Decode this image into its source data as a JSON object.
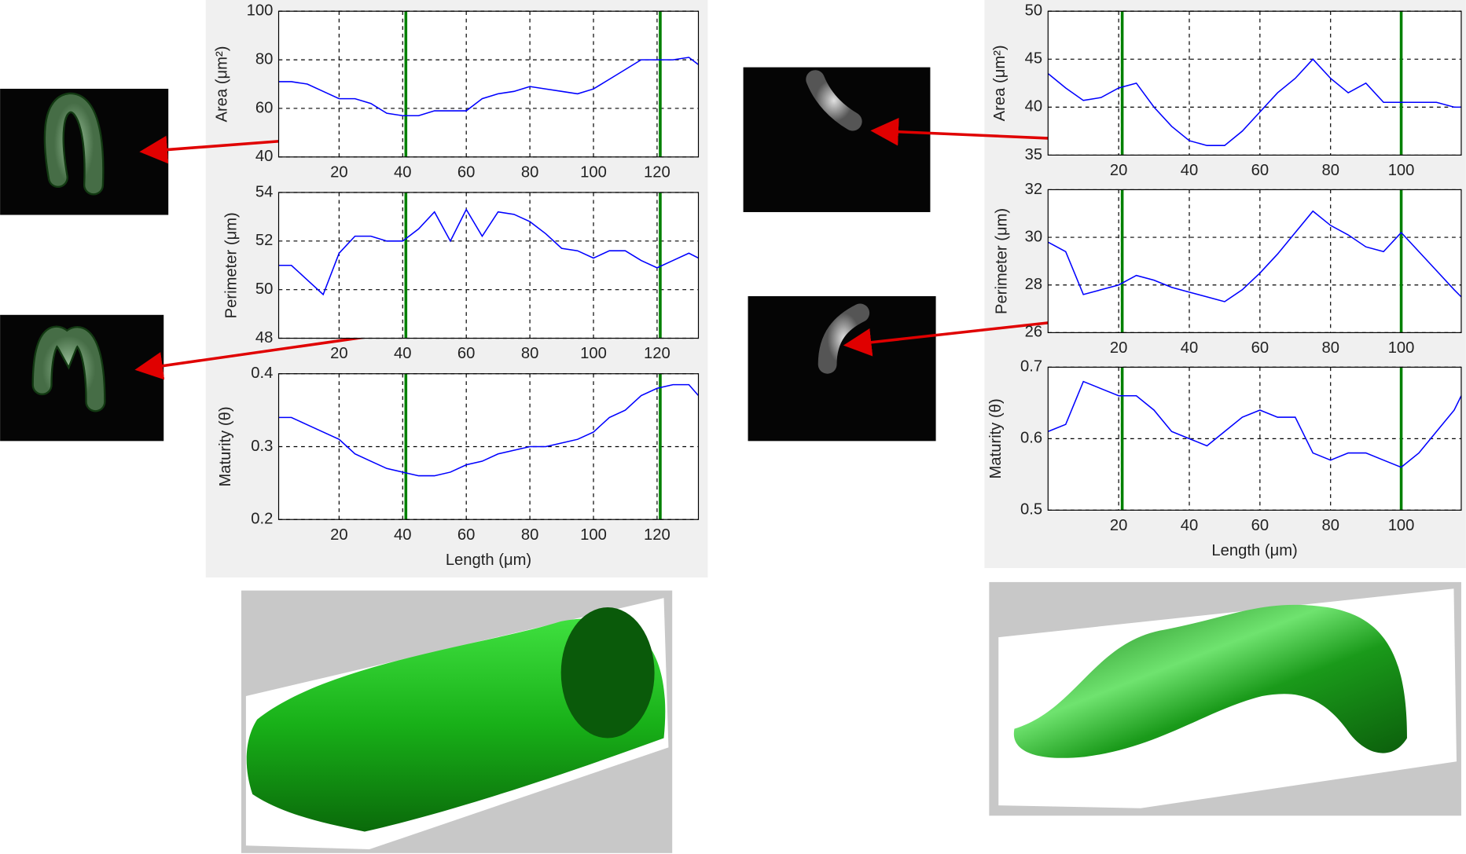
{
  "chart_data": [
    {
      "type": "line",
      "ylabel": "Area (μm²)",
      "x": [
        1,
        5,
        10,
        15,
        20,
        25,
        30,
        35,
        40,
        45,
        50,
        55,
        60,
        65,
        70,
        75,
        80,
        85,
        90,
        95,
        100,
        105,
        110,
        115,
        120,
        125,
        130,
        133
      ],
      "values": [
        71,
        71,
        70,
        67,
        64,
        64,
        62,
        58,
        57,
        57,
        59,
        59,
        59,
        64,
        66,
        67,
        69,
        68,
        67,
        66,
        68,
        72,
        76,
        80,
        80,
        80,
        81,
        78
      ],
      "color": "#0000ff",
      "xlim": [
        1,
        133
      ],
      "ylim": [
        40,
        100
      ],
      "xticks": [
        20,
        40,
        60,
        80,
        100,
        120
      ],
      "yticks": [
        40,
        60,
        80,
        100
      ],
      "grid": true,
      "vlines": [
        41,
        121
      ],
      "vline_color": "#008000"
    },
    {
      "type": "line",
      "ylabel": "Perimeter (μm)",
      "x": [
        1,
        5,
        10,
        15,
        20,
        25,
        30,
        35,
        40,
        45,
        50,
        55,
        60,
        65,
        70,
        75,
        80,
        85,
        90,
        95,
        100,
        105,
        110,
        115,
        120,
        125,
        130,
        133
      ],
      "values": [
        51,
        51,
        50.4,
        49.8,
        51.5,
        52.2,
        52.2,
        52,
        52,
        52.5,
        53.2,
        52,
        53.3,
        52.2,
        53.2,
        53.1,
        52.8,
        52.3,
        51.7,
        51.6,
        51.3,
        51.6,
        51.6,
        51.2,
        50.9,
        51.2,
        51.5,
        51.3
      ],
      "color": "#0000ff",
      "xlim": [
        1,
        133
      ],
      "ylim": [
        48,
        54
      ],
      "xticks": [
        20,
        40,
        60,
        80,
        100,
        120
      ],
      "yticks": [
        48,
        50,
        52,
        54
      ],
      "grid": true,
      "vlines": [
        41,
        121
      ],
      "vline_color": "#008000"
    },
    {
      "type": "line",
      "ylabel": "Maturity (θ)",
      "xlabel": "Length (μm)",
      "x": [
        1,
        5,
        10,
        15,
        20,
        25,
        30,
        35,
        40,
        45,
        50,
        55,
        60,
        65,
        70,
        75,
        80,
        85,
        90,
        95,
        100,
        105,
        110,
        115,
        120,
        125,
        130,
        133
      ],
      "values": [
        0.34,
        0.34,
        0.33,
        0.32,
        0.31,
        0.29,
        0.28,
        0.27,
        0.265,
        0.26,
        0.26,
        0.265,
        0.275,
        0.28,
        0.29,
        0.295,
        0.3,
        0.3,
        0.305,
        0.31,
        0.32,
        0.34,
        0.35,
        0.37,
        0.38,
        0.385,
        0.385,
        0.37
      ],
      "color": "#0000ff",
      "xlim": [
        1,
        133
      ],
      "ylim": [
        0.2,
        0.4
      ],
      "xticks": [
        20,
        40,
        60,
        80,
        100,
        120
      ],
      "yticks": [
        0.2,
        0.3,
        0.4
      ],
      "grid": true,
      "vlines": [
        41,
        121
      ],
      "vline_color": "#008000"
    },
    {
      "type": "line",
      "ylabel": "Area (μm²)",
      "x": [
        0,
        5,
        10,
        15,
        20,
        25,
        30,
        35,
        40,
        45,
        50,
        55,
        60,
        65,
        70,
        75,
        80,
        85,
        90,
        95,
        100,
        105,
        110,
        115,
        117
      ],
      "values": [
        43.5,
        42,
        40.7,
        41,
        42,
        42.5,
        40,
        38,
        36.5,
        36,
        36,
        37.5,
        39.5,
        41.5,
        43,
        45,
        43,
        41.5,
        42.5,
        40.5,
        40.5,
        40.5,
        40.5,
        40,
        40
      ],
      "color": "#0000ff",
      "xlim": [
        0,
        117
      ],
      "ylim": [
        35,
        50
      ],
      "xticks": [
        20,
        40,
        60,
        80,
        100
      ],
      "yticks": [
        35,
        40,
        45,
        50
      ],
      "grid": true,
      "vlines": [
        21,
        100
      ],
      "vline_color": "#008000"
    },
    {
      "type": "line",
      "ylabel": "Perimeter (μm)",
      "x": [
        0,
        5,
        10,
        15,
        20,
        25,
        30,
        35,
        40,
        45,
        50,
        55,
        60,
        65,
        70,
        75,
        80,
        85,
        90,
        95,
        100,
        105,
        110,
        115,
        117
      ],
      "values": [
        29.8,
        29.4,
        27.6,
        27.8,
        28,
        28.4,
        28.2,
        27.9,
        27.7,
        27.5,
        27.3,
        27.8,
        28.5,
        29.3,
        30.2,
        31.1,
        30.5,
        30.1,
        29.6,
        29.4,
        30.2,
        29.4,
        28.6,
        27.8,
        27.5
      ],
      "color": "#0000ff",
      "xlim": [
        0,
        117
      ],
      "ylim": [
        26,
        32
      ],
      "xticks": [
        20,
        40,
        60,
        80,
        100
      ],
      "yticks": [
        26,
        28,
        30,
        32
      ],
      "grid": true,
      "vlines": [
        21,
        100
      ],
      "vline_color": "#008000"
    },
    {
      "type": "line",
      "ylabel": "Maturity (θ)",
      "xlabel": "Length (μm)",
      "x": [
        0,
        5,
        10,
        15,
        20,
        25,
        30,
        35,
        40,
        45,
        50,
        55,
        60,
        65,
        70,
        75,
        80,
        85,
        90,
        95,
        100,
        105,
        110,
        115,
        117
      ],
      "values": [
        0.61,
        0.62,
        0.68,
        0.67,
        0.66,
        0.66,
        0.64,
        0.61,
        0.6,
        0.59,
        0.61,
        0.63,
        0.64,
        0.63,
        0.63,
        0.58,
        0.57,
        0.58,
        0.58,
        0.57,
        0.56,
        0.58,
        0.61,
        0.64,
        0.66
      ],
      "color": "#0000ff",
      "xlim": [
        0,
        117
      ],
      "ylim": [
        0.5,
        0.7
      ],
      "xticks": [
        20,
        40,
        60,
        80,
        100
      ],
      "yticks": [
        0.5,
        0.6,
        0.7
      ],
      "grid": true,
      "vlines": [
        21,
        100
      ],
      "vline_color": "#008000"
    }
  ]
}
